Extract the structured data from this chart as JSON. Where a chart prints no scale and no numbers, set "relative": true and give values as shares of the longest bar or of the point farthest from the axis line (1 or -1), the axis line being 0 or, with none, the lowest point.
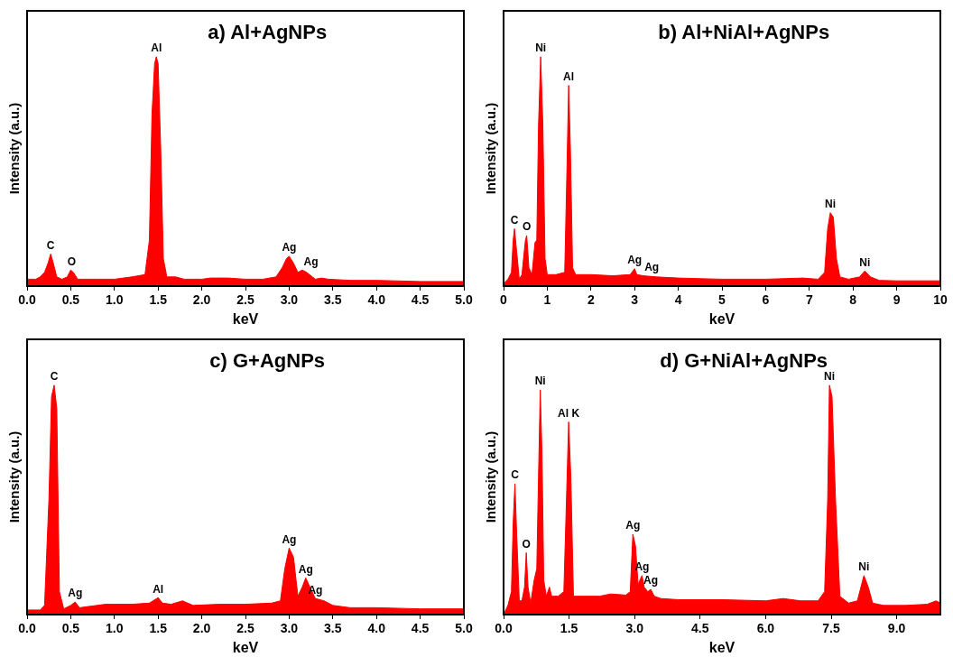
{
  "chart_data": [
    {
      "type": "area",
      "title": "a) Al+AgNPs",
      "xlabel": "keV",
      "ylabel": "Intensity (a.u.)",
      "relative": true,
      "legend": false,
      "grid": false,
      "xlim": [
        0,
        5
      ],
      "xticks": [
        {
          "value": 0,
          "label": "0.0"
        },
        {
          "value": 0.5,
          "label": "0.5"
        },
        {
          "value": 1,
          "label": "1.0"
        },
        {
          "value": 1.5,
          "label": "1.5"
        },
        {
          "value": 2,
          "label": "2.0"
        },
        {
          "value": 2.5,
          "label": "2.5"
        },
        {
          "value": 3,
          "label": "3.0"
        },
        {
          "value": 3.5,
          "label": "3.5"
        },
        {
          "value": 4,
          "label": "4.0"
        },
        {
          "value": 4.5,
          "label": "4.5"
        },
        {
          "value": 5,
          "label": "5.0"
        }
      ],
      "series": [
        {
          "color": "#ff0000",
          "x": [
            0,
            0.1,
            0.15,
            0.2,
            0.24,
            0.27,
            0.3,
            0.34,
            0.4,
            0.46,
            0.5,
            0.53,
            0.58,
            0.65,
            0.8,
            1.0,
            1.2,
            1.35,
            1.4,
            1.43,
            1.46,
            1.48,
            1.5,
            1.53,
            1.56,
            1.6,
            1.7,
            1.8,
            2.0,
            2.1,
            2.3,
            2.5,
            2.7,
            2.85,
            2.92,
            2.97,
            3.0,
            3.05,
            3.1,
            3.15,
            3.2,
            3.3,
            3.37,
            3.45,
            3.7,
            4.0,
            4.5,
            5.0
          ],
          "values": [
            0.03,
            0.03,
            0.04,
            0.06,
            0.1,
            0.14,
            0.1,
            0.04,
            0.03,
            0.04,
            0.07,
            0.06,
            0.03,
            0.03,
            0.03,
            0.03,
            0.04,
            0.05,
            0.2,
            0.75,
            0.97,
            1,
            0.97,
            0.6,
            0.12,
            0.04,
            0.04,
            0.03,
            0.03,
            0.035,
            0.035,
            0.03,
            0.03,
            0.04,
            0.08,
            0.12,
            0.13,
            0.1,
            0.06,
            0.07,
            0.06,
            0.03,
            0.035,
            0.03,
            0.025,
            0.025,
            0.02,
            0.02
          ]
        }
      ],
      "annotations": [
        {
          "text": "C",
          "x": 0.27,
          "y": 0.14
        },
        {
          "text": "O",
          "x": 0.51,
          "y": 0.07
        },
        {
          "text": "Al",
          "x": 1.48,
          "y": 1
        },
        {
          "text": "Ag",
          "x": 3.0,
          "y": 0.13
        },
        {
          "text": "Ag",
          "x": 3.25,
          "y": 0.07
        }
      ]
    },
    {
      "type": "area",
      "title": "b) Al+NiAl+AgNPs",
      "xlabel": "keV",
      "ylabel": "Intensity (a.u.)",
      "relative": true,
      "legend": false,
      "grid": false,
      "xlim": [
        0,
        10
      ],
      "xticks": [
        0,
        1,
        2,
        3,
        4,
        5,
        6,
        7,
        8,
        9,
        10
      ],
      "series": [
        {
          "color": "#ff0000",
          "x": [
            0,
            0.1,
            0.18,
            0.22,
            0.25,
            0.3,
            0.36,
            0.42,
            0.5,
            0.53,
            0.58,
            0.65,
            0.72,
            0.76,
            0.8,
            0.85,
            0.9,
            0.95,
            1.0,
            1.2,
            1.4,
            1.45,
            1.49,
            1.53,
            1.58,
            1.65,
            1.8,
            2.0,
            2.5,
            2.9,
            3.0,
            3.05,
            3.2,
            3.5,
            4,
            5,
            6,
            6.85,
            7.2,
            7.35,
            7.42,
            7.48,
            7.55,
            7.62,
            7.7,
            7.9,
            8.15,
            8.27,
            8.4,
            8.6,
            9,
            10
          ],
          "values": [
            0.01,
            0.03,
            0.06,
            0.2,
            0.25,
            0.15,
            0.03,
            0.05,
            0.2,
            0.22,
            0.08,
            0.05,
            0.19,
            0.2,
            0.7,
            1,
            0.7,
            0.12,
            0.05,
            0.05,
            0.06,
            0.5,
            0.875,
            0.6,
            0.08,
            0.05,
            0.05,
            0.05,
            0.045,
            0.05,
            0.076,
            0.05,
            0.045,
            0.04,
            0.035,
            0.03,
            0.03,
            0.035,
            0.03,
            0.06,
            0.25,
            0.32,
            0.3,
            0.12,
            0.04,
            0.03,
            0.04,
            0.066,
            0.04,
            0.025,
            0.023,
            0.023
          ]
        }
      ],
      "annotations": [
        {
          "text": "C",
          "x": 0.25,
          "y": 0.25
        },
        {
          "text": "O",
          "x": 0.53,
          "y": 0.22
        },
        {
          "text": "Ni",
          "x": 0.85,
          "y": 1
        },
        {
          "text": "Al",
          "x": 1.49,
          "y": 0.875
        },
        {
          "text": "Ag",
          "x": 3.0,
          "y": 0.076
        },
        {
          "text": "Ag",
          "x": 3.2,
          "y": 0.045
        },
        {
          "text": "Ni",
          "x": 7.48,
          "y": 0.32
        },
        {
          "text": "Ni",
          "x": 8.27,
          "y": 0.066
        }
      ]
    },
    {
      "type": "area",
      "title": "c) G+AgNPs",
      "xlabel": "keV",
      "ylabel": "Intensity (a.u.)",
      "relative": true,
      "legend": false,
      "grid": false,
      "xlim": [
        0,
        5
      ],
      "xticks": [
        {
          "value": 0,
          "label": "0.0"
        },
        {
          "value": 0.5,
          "label": "0.5"
        },
        {
          "value": 1,
          "label": "1.0"
        },
        {
          "value": 1.5,
          "label": "1.5"
        },
        {
          "value": 2,
          "label": "2.0"
        },
        {
          "value": 2.5,
          "label": "2.5"
        },
        {
          "value": 3,
          "label": "3.0"
        },
        {
          "value": 3.5,
          "label": "3.5"
        },
        {
          "value": 4,
          "label": "4.0"
        },
        {
          "value": 4.5,
          "label": "4.5"
        },
        {
          "value": 5,
          "label": "5.0"
        }
      ],
      "series": [
        {
          "color": "#ff0000",
          "x": [
            0,
            0.15,
            0.2,
            0.25,
            0.28,
            0.31,
            0.34,
            0.37,
            0.42,
            0.5,
            0.55,
            0.6,
            0.7,
            0.9,
            1.0,
            1.2,
            1.4,
            1.5,
            1.55,
            1.65,
            1.78,
            1.9,
            2.2,
            2.5,
            2.8,
            2.9,
            2.95,
            3.0,
            3.05,
            3.1,
            3.15,
            3.19,
            3.25,
            3.3,
            3.4,
            3.5,
            3.7,
            4.0,
            4.5,
            5.0
          ],
          "values": [
            0.02,
            0.02,
            0.04,
            0.5,
            0.95,
            1,
            0.9,
            0.1,
            0.025,
            0.04,
            0.055,
            0.03,
            0.035,
            0.045,
            0.045,
            0.045,
            0.05,
            0.074,
            0.05,
            0.045,
            0.06,
            0.04,
            0.045,
            0.045,
            0.05,
            0.06,
            0.2,
            0.29,
            0.25,
            0.08,
            0.12,
            0.16,
            0.11,
            0.07,
            0.06,
            0.04,
            0.03,
            0.03,
            0.025,
            0.025
          ]
        }
      ],
      "annotations": [
        {
          "text": "C",
          "x": 0.31,
          "y": 1
        },
        {
          "text": "Ag",
          "x": 0.55,
          "y": 0.055
        },
        {
          "text": "Al",
          "x": 1.5,
          "y": 0.074
        },
        {
          "text": "Ag",
          "x": 3.0,
          "y": 0.29
        },
        {
          "text": "Ag",
          "x": 3.19,
          "y": 0.16
        },
        {
          "text": "Ag",
          "x": 3.3,
          "y": 0.07
        }
      ]
    },
    {
      "type": "area",
      "title": "d) G+NiAl+AgNPs",
      "xlabel": "keV",
      "ylabel": "Intensity (a.u.)",
      "relative": true,
      "legend": false,
      "grid": false,
      "xlim": [
        0,
        10
      ],
      "xticks": [
        {
          "value": 0,
          "label": "0.0"
        },
        {
          "value": 1.5,
          "label": "1.5"
        },
        {
          "value": 3,
          "label": "3.0"
        },
        {
          "value": 4.5,
          "label": "4.5"
        },
        {
          "value": 6,
          "label": "6.0"
        },
        {
          "value": 7.5,
          "label": "7.5"
        },
        {
          "value": 9,
          "label": "9.0"
        }
      ],
      "series": [
        {
          "color": "#ff0000",
          "x": [
            0,
            0.1,
            0.18,
            0.22,
            0.26,
            0.3,
            0.36,
            0.42,
            0.48,
            0.52,
            0.56,
            0.62,
            0.7,
            0.76,
            0.8,
            0.84,
            0.88,
            0.92,
            0.98,
            1.05,
            1.1,
            1.25,
            1.38,
            1.44,
            1.49,
            1.54,
            1.6,
            1.8,
            2.2,
            2.45,
            2.8,
            2.9,
            2.96,
            3.02,
            3.08,
            3.12,
            3.17,
            3.22,
            3.3,
            3.37,
            3.45,
            3.6,
            4.0,
            5,
            6,
            6.4,
            6.8,
            7.2,
            7.35,
            7.42,
            7.46,
            7.52,
            7.6,
            7.7,
            7.9,
            8.1,
            8.25,
            8.35,
            8.45,
            8.7,
            9.2,
            9.7,
            9.9,
            10
          ],
          "values": [
            0,
            0.04,
            0.1,
            0.4,
            0.57,
            0.35,
            0.06,
            0.06,
            0.12,
            0.27,
            0.12,
            0.05,
            0.15,
            0.2,
            0.6,
            0.98,
            0.7,
            0.15,
            0.08,
            0.12,
            0.08,
            0.08,
            0.1,
            0.5,
            0.84,
            0.6,
            0.08,
            0.08,
            0.08,
            0.09,
            0.085,
            0.1,
            0.35,
            0.3,
            0.13,
            0.15,
            0.17,
            0.12,
            0.1,
            0.11,
            0.08,
            0.07,
            0.065,
            0.065,
            0.06,
            0.07,
            0.06,
            0.06,
            0.1,
            0.5,
            1,
            0.95,
            0.5,
            0.08,
            0.05,
            0.06,
            0.17,
            0.12,
            0.05,
            0.04,
            0.04,
            0.045,
            0.06,
            0.05
          ]
        }
      ],
      "annotations": [
        {
          "text": "C",
          "x": 0.26,
          "y": 0.57
        },
        {
          "text": "O",
          "x": 0.52,
          "y": 0.27
        },
        {
          "text": "Ni",
          "x": 0.84,
          "y": 0.98
        },
        {
          "text": "Al K",
          "x": 1.49,
          "y": 0.84
        },
        {
          "text": "Ag",
          "x": 2.96,
          "y": 0.35
        },
        {
          "text": "Ag",
          "x": 3.17,
          "y": 0.17
        },
        {
          "text": "Ag",
          "x": 3.37,
          "y": 0.11
        },
        {
          "text": "Ni",
          "x": 7.46,
          "y": 1
        },
        {
          "text": "Ni",
          "x": 8.25,
          "y": 0.17
        }
      ]
    }
  ]
}
